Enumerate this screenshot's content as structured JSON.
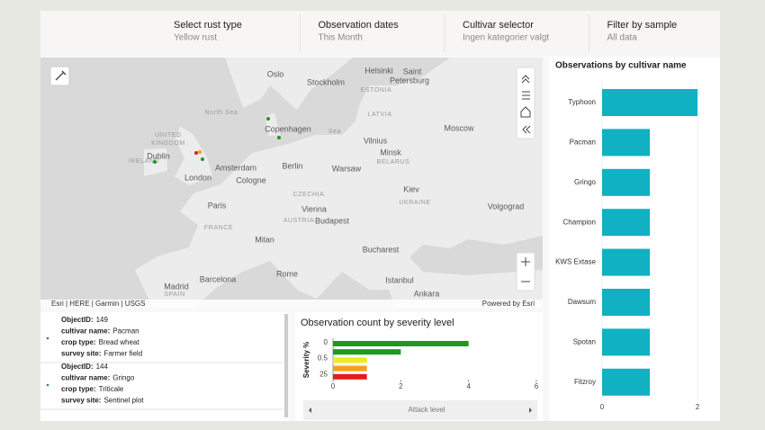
{
  "header": {
    "filters": [
      {
        "title": "Select rust type",
        "value": "Yellow rust"
      },
      {
        "title": "Observation dates",
        "value": "This Month"
      },
      {
        "title": "Cultivar selector",
        "value": "Ingen kategorier valgt"
      },
      {
        "title": "Filter by sample",
        "value": "All data"
      }
    ]
  },
  "map": {
    "labels": [
      "Oslo",
      "Helsinki",
      "Saint",
      "Petersburg",
      "Stockholm",
      "ESTONIA",
      "LATVIA",
      "North Sea",
      "Copenhagen",
      "Sea",
      "Moscow",
      "Vilnius",
      "Minsk",
      "BELARUS",
      "UNITED",
      "KINGDOM",
      "IRELAND",
      "Dublin",
      "London",
      "Amsterdam",
      "Berlin",
      "Warsaw",
      "Cologne",
      "Kiev",
      "UKRAINE",
      "CZECHIA",
      "Paris",
      "Vienna",
      "AUSTRIA",
      "Budapest",
      "Volgograd",
      "FRANCE",
      "Milan",
      "Bucharest",
      "Rome",
      "Barcelona",
      "Madrid",
      "SPAIN",
      "Istanbul",
      "Ankara"
    ],
    "attribution": "Esri | HERE | Garmin | USGS",
    "powered_by": "Powered by Esri"
  },
  "feature_list": [
    {
      "fields": [
        {
          "key": "ObjectID:",
          "value": "149"
        },
        {
          "key": "cultivar name:",
          "value": "Pacman"
        },
        {
          "key": "crop type:",
          "value": "Bread wheat"
        },
        {
          "key": "survey site:",
          "value": "Farmer field"
        }
      ]
    },
    {
      "fields": [
        {
          "key": "ObjectID:",
          "value": "144"
        },
        {
          "key": "cultivar name:",
          "value": "Gringo"
        },
        {
          "key": "crop type:",
          "value": "Triticale"
        },
        {
          "key": "survey site:",
          "value": "Sentinel plot"
        }
      ]
    }
  ],
  "severity_chart": {
    "type": "hbar",
    "title": "Observation count by severity level",
    "y_label": "Severity %",
    "categories": [
      "0",
      null,
      "0.5",
      null,
      "25"
    ],
    "values": [
      4,
      2,
      1,
      1,
      1
    ],
    "colors": [
      "#1e9a1e",
      "#1e9a1e",
      "#ecec1e",
      "#f5a01a",
      "#e51c1c"
    ],
    "xlim": [
      0,
      6
    ],
    "xticks": [
      0,
      2,
      4,
      6
    ],
    "scroll_label": "Attack level"
  },
  "cultivar_chart": {
    "type": "hbar",
    "title": "Observations by cultivar name",
    "categories": [
      "Typhoon",
      "Pacman",
      "Gringo",
      "Champion",
      "KWS Extase",
      "Dawsum",
      "Spotan",
      "Fitzroy"
    ],
    "values": [
      2,
      1,
      1,
      1,
      1,
      1,
      1,
      1
    ],
    "color": "#0fb1c3",
    "xlim": [
      0,
      2
    ],
    "xticks": [
      0,
      2
    ],
    "grid": true
  }
}
